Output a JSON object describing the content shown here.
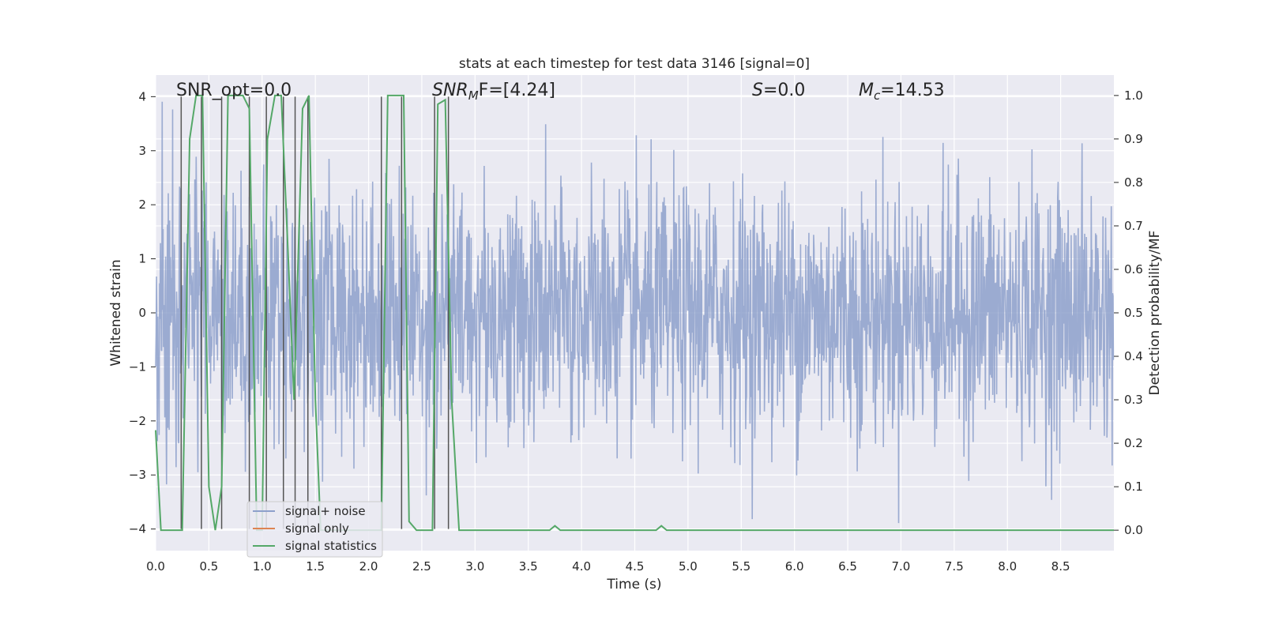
{
  "chart_data": {
    "type": "line",
    "title": "stats at each timestep for test data 3146 [signal=0]",
    "xlabel": "Time (s)",
    "ylabel": "Whitened strain",
    "y2label": "Detection probability/MF",
    "xlim": [
      0,
      9.0
    ],
    "ylim": [
      -4.4,
      4.4
    ],
    "y2lim": [
      -0.047,
      1.047
    ],
    "xticks": [
      "0.0",
      "0.5",
      "1.0",
      "1.5",
      "2.0",
      "2.5",
      "3.0",
      "3.5",
      "4.0",
      "4.5",
      "5.0",
      "5.5",
      "6.0",
      "6.5",
      "7.0",
      "7.5",
      "8.0",
      "8.5"
    ],
    "yticks": [
      "4",
      "3",
      "2",
      "1",
      "0",
      "−1",
      "−2",
      "−3",
      "−4"
    ],
    "y2ticks": [
      "1.0",
      "0.9",
      "0.8",
      "0.7",
      "0.6",
      "0.5",
      "0.4",
      "0.3",
      "0.2",
      "0.1",
      "0.0"
    ],
    "colors": {
      "noise": "#8da0cb",
      "signal_only": "#dd8452",
      "statistics": "#55a868",
      "markers": "#555555",
      "plot_bg": "#eaeaf2",
      "grid": "#ffffff"
    },
    "annotations": {
      "snr_opt": "SNR_opt=0.0",
      "snr_mf_main": "SNR",
      "snr_mf_sub": "M",
      "snr_mf_rest": "F=[4.24]",
      "s_italic": "S",
      "s_rest": "=0.0",
      "mc_main": "M",
      "mc_sub": "c",
      "mc_rest": "=14.53"
    },
    "legend": {
      "placement": "lower-left",
      "entries": [
        "signal+ noise",
        "signal only",
        "signal statistics"
      ]
    },
    "series": [
      {
        "name": "signal+ noise",
        "description": "whitened strain noise, left axis, roughly -4 to 4"
      },
      {
        "name": "signal only",
        "values": []
      },
      {
        "name": "signal statistics",
        "axis": "right",
        "x": [
          0.0,
          0.05,
          0.25,
          0.32,
          0.38,
          0.44,
          0.5,
          0.56,
          0.62,
          0.68,
          0.75,
          0.82,
          0.88,
          0.95,
          1.0,
          1.05,
          1.12,
          1.18,
          1.25,
          1.3,
          1.38,
          1.44,
          1.5,
          1.55,
          1.62,
          1.7,
          2.0,
          2.12,
          2.18,
          2.23,
          2.33,
          2.38,
          2.45,
          2.6,
          2.65,
          2.72,
          2.78,
          2.85,
          2.9,
          3.5,
          3.7,
          3.75,
          3.8,
          4.7,
          4.75,
          4.8,
          9.0
        ],
        "y": [
          0.23,
          0.0,
          0.0,
          0.9,
          1.0,
          1.0,
          0.1,
          0.0,
          0.1,
          1.0,
          1.0,
          1.0,
          0.97,
          0.0,
          0.0,
          0.9,
          1.0,
          1.0,
          0.6,
          0.3,
          0.97,
          1.0,
          0.3,
          0.0,
          0.0,
          0.0,
          0.0,
          0.0,
          1.0,
          1.0,
          1.0,
          0.02,
          0.0,
          0.0,
          0.98,
          0.99,
          0.3,
          0.0,
          0.0,
          0.0,
          0.0,
          0.01,
          0.0,
          0.0,
          0.01,
          0.0,
          0.0
        ]
      },
      {
        "name": "timestep markers",
        "type": "vlines",
        "x": [
          0.24,
          0.43,
          0.62,
          0.88,
          1.04,
          1.2,
          1.31,
          1.43,
          2.12,
          2.31,
          2.62,
          2.75
        ]
      }
    ]
  }
}
